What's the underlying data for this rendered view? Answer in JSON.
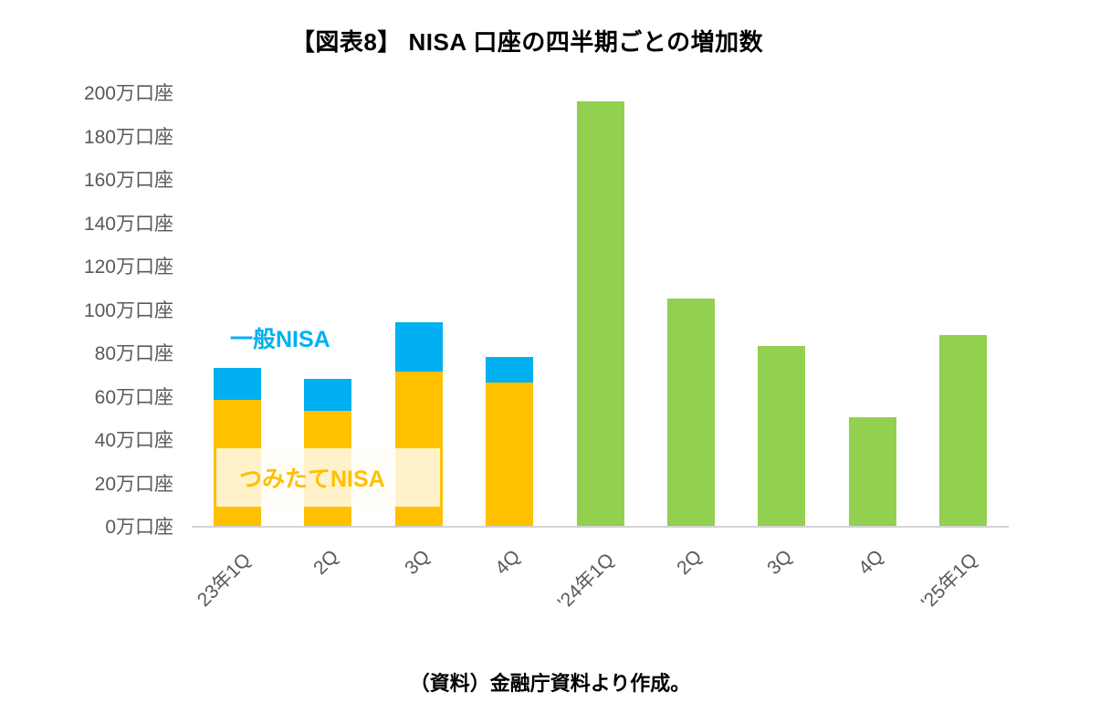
{
  "title": "【図表8】 NISA 口座の四半期ごとの増加数",
  "caption": "（資料）金融庁資料より作成。",
  "annotations": {
    "ippan_label": "一般NISA",
    "tsumitate_label": "つみたてNISA"
  },
  "colors": {
    "tsumitate": "#FFC000",
    "ippan": "#00B0F0",
    "green": "#92D050",
    "axis_text": "#595959",
    "axis_line": "#d4d4d4"
  },
  "chart_data": {
    "type": "bar",
    "stacked": true,
    "categories": [
      "23年1Q",
      "2Q",
      "3Q",
      "4Q",
      "'24年1Q",
      "2Q",
      "3Q",
      "4Q",
      "'25年1Q"
    ],
    "series": [
      {
        "name": "つみたてNISA",
        "color": "#FFC000",
        "values": [
          58,
          53,
          71,
          66,
          0,
          0,
          0,
          0,
          0
        ]
      },
      {
        "name": "一般NISA",
        "color": "#00B0F0",
        "values": [
          15,
          15,
          23,
          12,
          0,
          0,
          0,
          0,
          0
        ]
      },
      {
        "name": "",
        "color": "#92D050",
        "values": [
          0,
          0,
          0,
          0,
          196,
          105,
          83,
          50,
          88
        ]
      }
    ],
    "y_ticks": [
      0,
      20,
      40,
      60,
      80,
      100,
      120,
      140,
      160,
      180,
      200
    ],
    "y_tick_labels": [
      "0万口座",
      "20万口座",
      "40万口座",
      "60万口座",
      "80万口座",
      "100万口座",
      "120万口座",
      "140万口座",
      "160万口座",
      "180万口座",
      "200万口座"
    ],
    "ylim": [
      0,
      200
    ],
    "grid": false,
    "legend_position": "none"
  }
}
